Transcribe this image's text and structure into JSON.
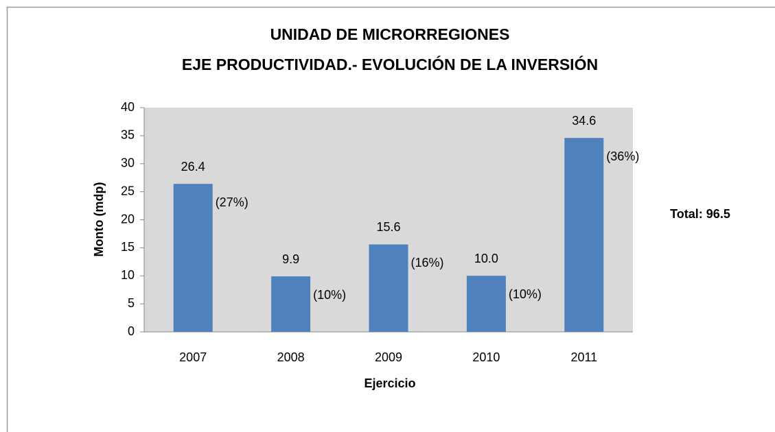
{
  "chart_data": {
    "type": "bar",
    "title": "UNIDAD DE MICRORREGIONES",
    "subtitle": "EJE PRODUCTIVIDAD.- EVOLUCIÓN DE LA INVERSIÓN",
    "x_label": "Ejercicio",
    "y_label": "Monto (mdp)",
    "categories": [
      "2007",
      "2008",
      "2009",
      "2010",
      "2011"
    ],
    "values": [
      26.4,
      9.9,
      15.6,
      10,
      34.6
    ],
    "value_labels": [
      "26.4",
      "9.9",
      "15.6",
      "10.0",
      "34.6"
    ],
    "percent_labels": [
      "(27%)",
      "(10%)",
      "(16%)",
      "(10%)",
      "(36%)"
    ],
    "annotation": "Total: 96.5",
    "color": "#4f81bd",
    "ylim": [
      0,
      40
    ],
    "yticks": [
      0,
      5,
      10,
      15,
      20,
      25,
      30,
      35,
      40
    ],
    "grid": false
  }
}
